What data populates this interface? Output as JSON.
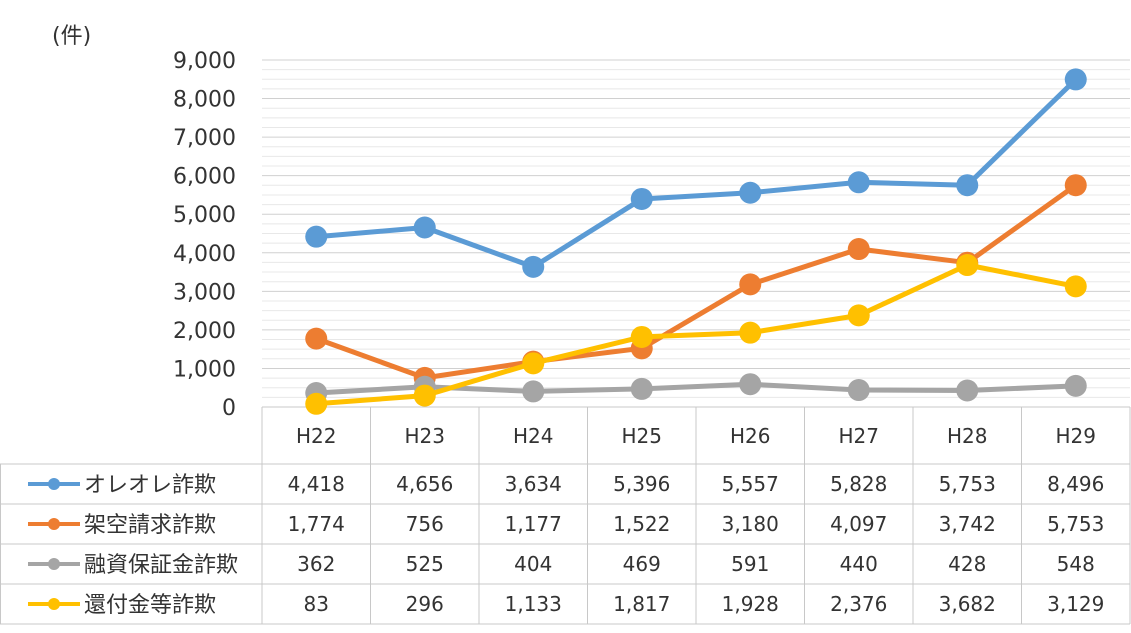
{
  "unit": "(件)",
  "chart_data": {
    "type": "line",
    "categories": [
      "H22",
      "H23",
      "H24",
      "H25",
      "H26",
      "H27",
      "H28",
      "H29"
    ],
    "ylim": [
      0,
      9000
    ],
    "yticks": [
      0,
      1000,
      2000,
      3000,
      4000,
      5000,
      6000,
      7000,
      8000,
      9000
    ],
    "ytick_labels": [
      "0",
      "1,000",
      "2,000",
      "3,000",
      "4,000",
      "5,000",
      "6,000",
      "7,000",
      "8,000",
      "9,000"
    ],
    "grid": true,
    "legend": "data-table",
    "series": [
      {
        "name": "オレオレ詐欺",
        "color": "#5B9BD5",
        "values": [
          4418,
          4656,
          3634,
          5396,
          5557,
          5828,
          5753,
          8496
        ],
        "labels": [
          "4,418",
          "4,656",
          "3,634",
          "5,396",
          "5,557",
          "5,828",
          "5,753",
          "8,496"
        ]
      },
      {
        "name": "架空請求詐欺",
        "color": "#ED7D31",
        "values": [
          1774,
          756,
          1177,
          1522,
          3180,
          4097,
          3742,
          5753
        ],
        "labels": [
          "1,774",
          "756",
          "1,177",
          "1,522",
          "3,180",
          "4,097",
          "3,742",
          "5,753"
        ]
      },
      {
        "name": "融資保証金詐欺",
        "color": "#A5A5A5",
        "values": [
          362,
          525,
          404,
          469,
          591,
          440,
          428,
          548
        ],
        "labels": [
          "362",
          "525",
          "404",
          "469",
          "591",
          "440",
          "428",
          "548"
        ]
      },
      {
        "name": "還付金等詐欺",
        "color": "#FFC000",
        "values": [
          83,
          296,
          1133,
          1817,
          1928,
          2376,
          3682,
          3129
        ],
        "labels": [
          "83",
          "296",
          "1,133",
          "1,817",
          "1,928",
          "2,376",
          "3,682",
          "3,129"
        ]
      }
    ]
  }
}
